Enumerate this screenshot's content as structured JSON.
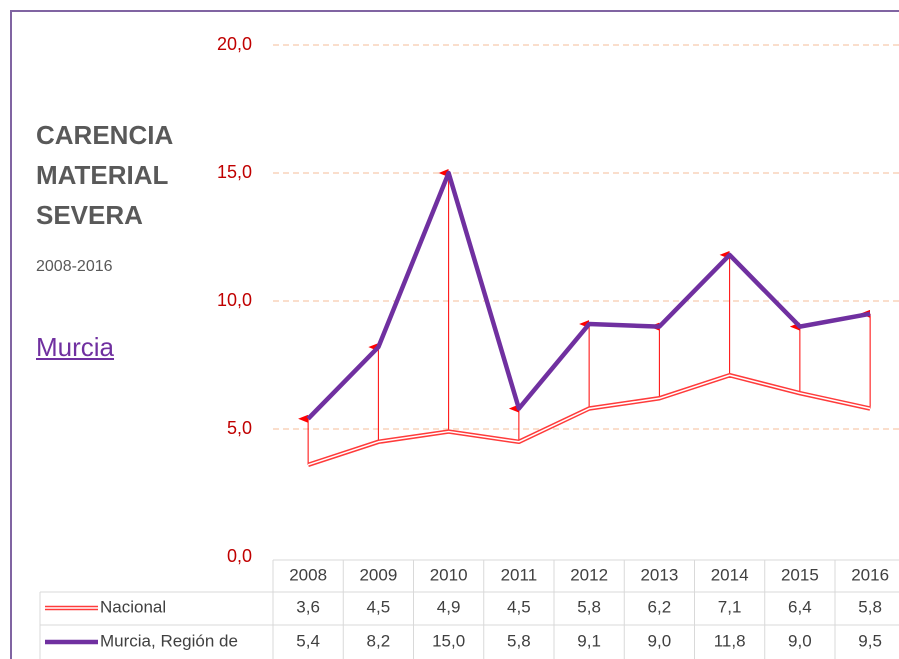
{
  "chart_data": {
    "type": "line",
    "title": "CARENCIA MATERIAL SEVERA",
    "subtitle": "2008-2016",
    "link": "Murcia",
    "categories": [
      "2008",
      "2009",
      "2010",
      "2011",
      "2012",
      "2013",
      "2014",
      "2015",
      "2016"
    ],
    "series": [
      {
        "name": "Nacional",
        "color": "#ff3b3b",
        "values": [
          3.6,
          4.5,
          4.9,
          4.5,
          5.8,
          6.2,
          7.1,
          6.4,
          5.8
        ],
        "value_labels": [
          "3,6",
          "4,5",
          "4,9",
          "4,5",
          "5,8",
          "6,2",
          "7,1",
          "6,4",
          "5,8"
        ]
      },
      {
        "name": "Murcia, Región de",
        "color": "#7030a0",
        "values": [
          5.4,
          8.2,
          15.0,
          5.8,
          9.1,
          9.0,
          11.8,
          9.0,
          9.5
        ],
        "value_labels": [
          "5,4",
          "8,2",
          "15,0",
          "5,8",
          "9,1",
          "9,0",
          "11,8",
          "9,0",
          "9,5"
        ]
      }
    ],
    "ylim": [
      0,
      20
    ],
    "yticks": [
      {
        "value": 0,
        "label": "0,0"
      },
      {
        "value": 5,
        "label": "5,0"
      },
      {
        "value": 10,
        "label": "10,0"
      },
      {
        "value": 15,
        "label": "15,0"
      },
      {
        "value": 20,
        "label": "20,0"
      }
    ],
    "grid": true,
    "arrow_color": "#ff0000"
  }
}
